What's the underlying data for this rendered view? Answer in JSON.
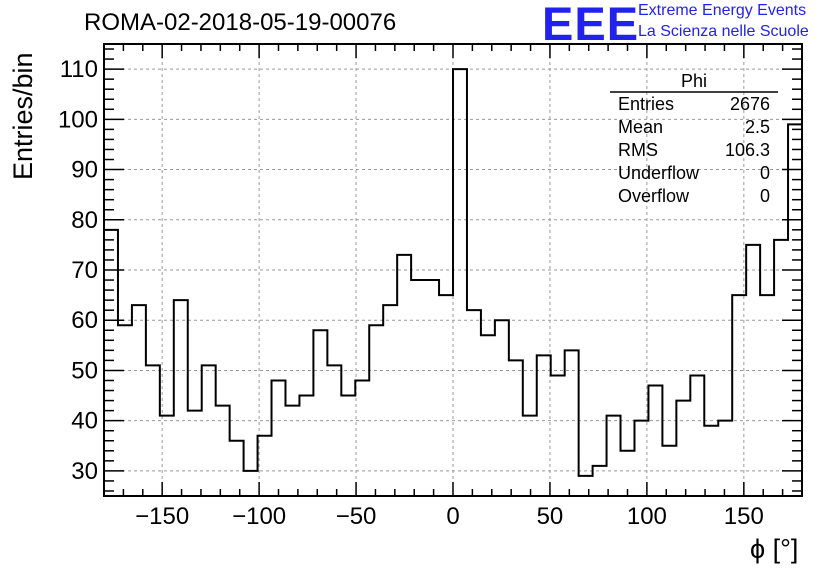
{
  "title": "ROMA-02-2018-05-19-00076",
  "logo": {
    "mark": "EEE",
    "line1": "Extreme Energy Events",
    "line2": "La Scienza nelle Scuole",
    "color": "#2222ee"
  },
  "stats_box": {
    "name": "Phi",
    "rows": [
      {
        "label": "Entries",
        "value": "2676"
      },
      {
        "label": "Mean",
        "value": "2.5"
      },
      {
        "label": "RMS",
        "value": "106.3"
      },
      {
        "label": "Underflow",
        "value": "0"
      },
      {
        "label": "Overflow",
        "value": "0"
      }
    ]
  },
  "chart_data": {
    "type": "histogram",
    "title": "ROMA-02-2018-05-19-00076",
    "xlabel": "ϕ [°]",
    "ylabel": "Entries/bin",
    "xlim": [
      -180,
      180
    ],
    "ylim": [
      25,
      115
    ],
    "bin_width": 7.2,
    "grid": true,
    "xticks": [
      -150,
      -100,
      -50,
      0,
      50,
      100,
      150
    ],
    "yticks": [
      30,
      40,
      50,
      60,
      70,
      80,
      90,
      100,
      110
    ],
    "values": [
      78,
      59,
      63,
      51,
      41,
      64,
      42,
      51,
      43,
      36,
      30,
      37,
      48,
      43,
      45,
      58,
      51,
      45,
      48,
      59,
      63,
      73,
      68,
      68,
      65,
      110,
      62,
      57,
      60,
      52,
      41,
      53,
      49,
      54,
      29,
      31,
      41,
      34,
      40,
      47,
      35,
      44,
      49,
      39,
      40,
      65,
      75,
      65,
      76,
      99
    ]
  }
}
